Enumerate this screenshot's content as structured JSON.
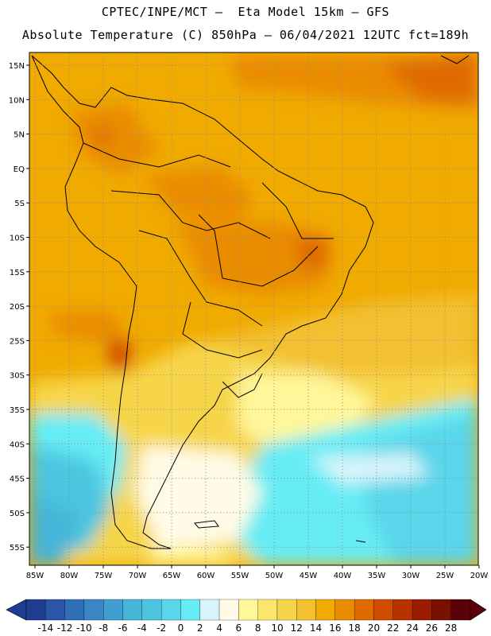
{
  "header": {
    "line1": "CPTEC/INPE/MCT –  Eta Model 15km – GFS",
    "line2": "Absolute Temperature (C) 850hPa – 06/04/2021 12UTC fct=189h"
  },
  "map": {
    "lat_labels": [
      "15N",
      "10N",
      "5N",
      "EQ",
      "5S",
      "10S",
      "15S",
      "20S",
      "25S",
      "30S",
      "35S",
      "40S",
      "45S",
      "50S",
      "55S"
    ],
    "lon_labels": [
      "85W",
      "80W",
      "75W",
      "70W",
      "65W",
      "60W",
      "55W",
      "50W",
      "45W",
      "40W",
      "35W",
      "30W",
      "25W",
      "20W"
    ],
    "grid": "dotted"
  },
  "colorbar": {
    "ticks": [
      "-14",
      "-12",
      "-10",
      "-8",
      "-6",
      "-4",
      "-2",
      "0",
      "2",
      "4",
      "6",
      "8",
      "10",
      "12",
      "14",
      "16",
      "18",
      "20",
      "22",
      "24",
      "26",
      "28"
    ],
    "colors": [
      "#1f3d8f",
      "#2a55a8",
      "#2f6fb8",
      "#3a86c4",
      "#3f9fd0",
      "#45b5d8",
      "#4cc6e0",
      "#5ad6ea",
      "#66ecf5",
      "#d7f4fb",
      "#fffbe6",
      "#fff79a",
      "#fbe56a",
      "#f7d54a",
      "#f2c030",
      "#f0aa00",
      "#ea8c00",
      "#e06a00",
      "#d04c00",
      "#b83200",
      "#9a1c00",
      "#7a1000",
      "#5a0008"
    ]
  }
}
